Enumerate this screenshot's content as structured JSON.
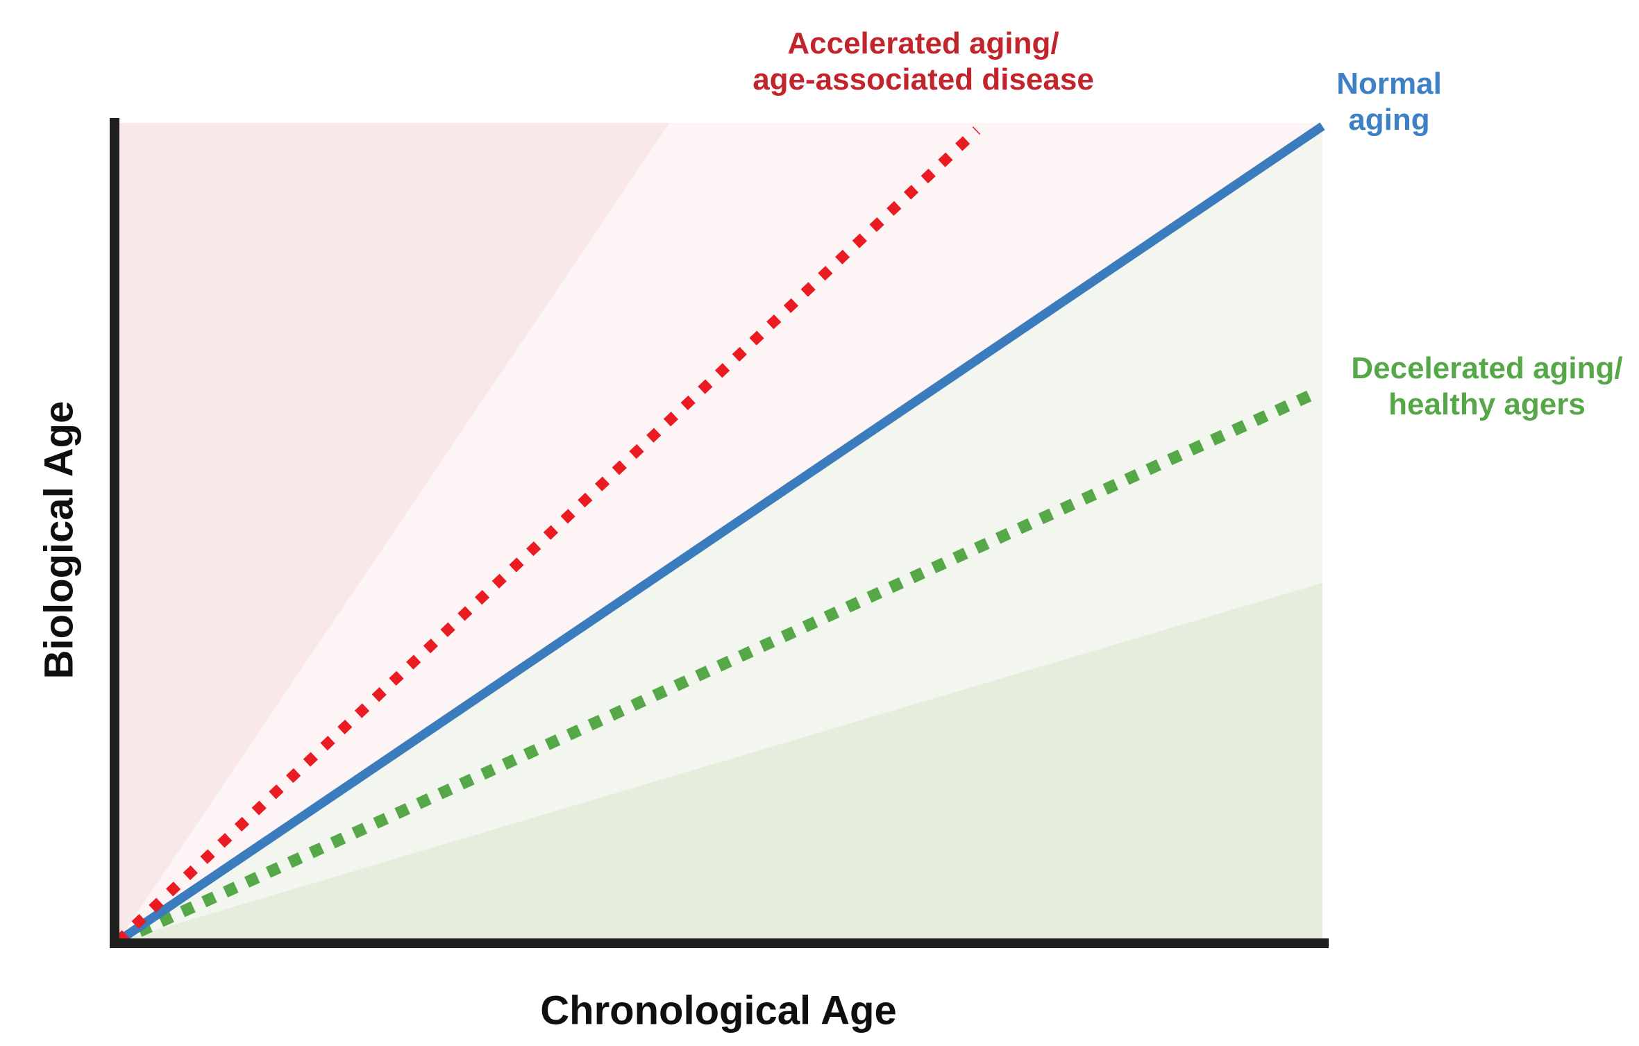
{
  "axes": {
    "x_label": "Chronological Age",
    "y_label": "Biological Age",
    "axis_color": "#1f1f1f",
    "label_color": "#0f0f0f",
    "ticks": "none",
    "gridlines": false
  },
  "annotations": {
    "accelerated": {
      "line1": "Accelerated aging/",
      "line2": "age-associated disease",
      "color": "#c2242b"
    },
    "normal": {
      "line1": "Normal",
      "line2": "aging",
      "color": "#3e80c6"
    },
    "decelerated": {
      "line1": "Decelerated aging/",
      "line2": "healthy agers",
      "color": "#55a747"
    }
  },
  "chart_data": {
    "type": "line",
    "title": "",
    "xlabel": "Chronological Age",
    "ylabel": "Biological Age",
    "axis_numeric_labels": false,
    "x_range_normalized": [
      0,
      1
    ],
    "y_range_normalized": [
      0,
      1
    ],
    "legend_position": "inline-annotations-at-line-ends",
    "series": [
      {
        "key": "accelerated",
        "name": "Accelerated aging/age-associated disease",
        "style": "dotted",
        "color": "#ea1b22",
        "start": [
          0,
          0
        ],
        "end": [
          0.713,
          0.991
        ],
        "relative_slope_vs_normal": 1.39
      },
      {
        "key": "normal",
        "name": "Normal aging",
        "style": "solid",
        "color": "#3a7cbe",
        "start": [
          0,
          0
        ],
        "end": [
          1.0,
          0.996
        ],
        "relative_slope_vs_normal": 1.0
      },
      {
        "key": "decelerated",
        "name": "Decelerated aging/healthy agers",
        "style": "dotted",
        "color": "#55a747",
        "start": [
          0,
          0
        ],
        "end": [
          0.993,
          0.669
        ],
        "relative_slope_vs_normal": 0.67
      }
    ],
    "regions": [
      {
        "key": "accelerated_zone",
        "label": "accelerated aging fan (strong pink)",
        "fill": "#f9e8ea",
        "points": [
          [
            0,
            0
          ],
          [
            0,
            1
          ],
          [
            0.458,
            1
          ]
        ]
      },
      {
        "key": "upper_middle_zone",
        "label": "above normal line (faint pink)",
        "fill": "#fcf4f5",
        "points": [
          [
            0,
            0
          ],
          [
            0.458,
            1
          ],
          [
            1,
            1
          ],
          [
            1,
            0.996
          ]
        ]
      },
      {
        "key": "lower_middle_zone",
        "label": "below normal line (faint green)",
        "fill": "#f2f6ef",
        "points": [
          [
            0,
            0
          ],
          [
            1,
            0.996
          ],
          [
            1,
            0.438
          ]
        ]
      },
      {
        "key": "decelerated_zone",
        "label": "decelerated aging fan (light green)",
        "fill": "#e6eddd",
        "points": [
          [
            0,
            0
          ],
          [
            1,
            0.438
          ],
          [
            1,
            0
          ]
        ]
      }
    ]
  }
}
